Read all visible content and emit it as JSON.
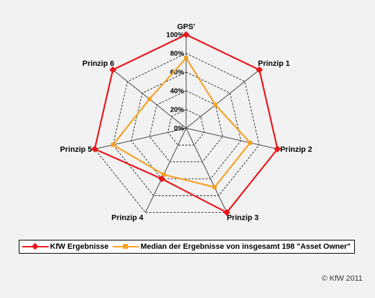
{
  "chart_data": {
    "type": "radar",
    "axes": [
      "GPS'",
      "Prinzip 1",
      "Prinzip 2",
      "Prinzip 3",
      "Prinzip 4",
      "Prinzip 5",
      "Prinzip 6"
    ],
    "tick_labels": [
      "0%",
      "20%",
      "40%",
      "60%",
      "80%",
      "100%"
    ],
    "range": [
      0,
      100
    ],
    "grid": true,
    "series": [
      {
        "name": "KfW Ergebnisse",
        "values": [
          100,
          100,
          100,
          100,
          60,
          100,
          100
        ],
        "color": "#e8161b",
        "marker": "diamond"
      },
      {
        "name": "Median der Ergebnisse von insgesamt 198 \"Asset Owner\"",
        "values": [
          75,
          40,
          70,
          70,
          55,
          80,
          50
        ],
        "color": "#f5a122",
        "marker": "square"
      }
    ],
    "legend_position": "bottom"
  },
  "copyright": "© KfW 2011"
}
